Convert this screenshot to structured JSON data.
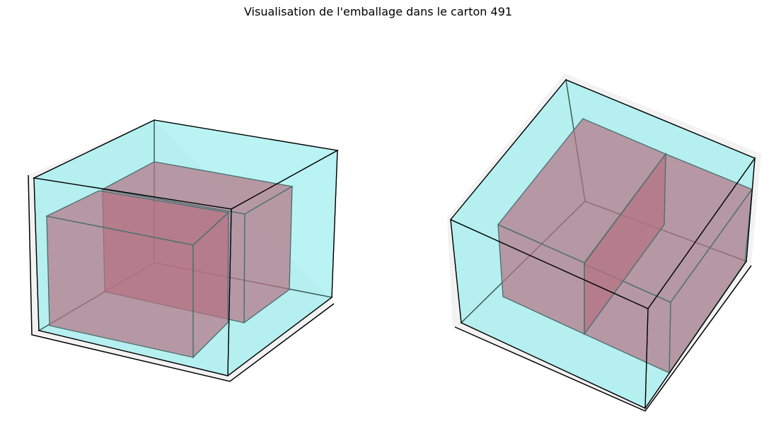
{
  "figure": {
    "title": "Visualisation de l'emballage dans le carton 491"
  },
  "colors": {
    "carton_fill": "#9eeeee",
    "item_fill": "#c23048",
    "edge": "#000000",
    "pane": "#f2f2f2"
  },
  "views": [
    {
      "name": "left-view",
      "carton": "cyan-translucent",
      "items": 2
    },
    {
      "name": "right-view",
      "carton": "cyan-translucent",
      "items": 2
    }
  ]
}
